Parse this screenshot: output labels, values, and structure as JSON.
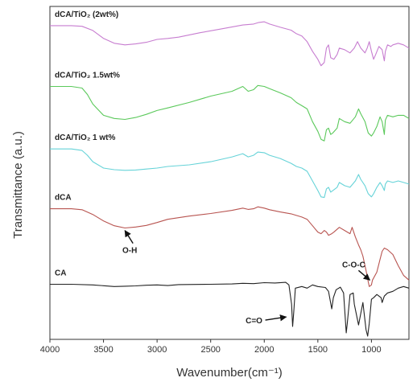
{
  "chart_data": {
    "type": "line",
    "xlabel": "Wavenumber(cm⁻¹)",
    "ylabel": "Transmittance (a.u.)",
    "x_reversed": true,
    "xlim": [
      4000,
      650
    ],
    "xticks": [
      4000,
      3500,
      3000,
      2500,
      2000,
      1500,
      1000
    ],
    "ylim": [
      0,
      100
    ],
    "legend": "labels placed above each curve on the left",
    "grid": false,
    "series": [
      {
        "name": "dCA/TiO₂ (2wt%)",
        "color": "#c77dd0",
        "points": [
          [
            4000,
            96
          ],
          [
            3800,
            96
          ],
          [
            3700,
            95.8
          ],
          [
            3600,
            94.5
          ],
          [
            3500,
            92
          ],
          [
            3400,
            90.5
          ],
          [
            3300,
            90
          ],
          [
            3200,
            90.3
          ],
          [
            3100,
            90.8
          ],
          [
            3000,
            91.7
          ],
          [
            2900,
            92
          ],
          [
            2800,
            92.4
          ],
          [
            2600,
            93.8
          ],
          [
            2400,
            95
          ],
          [
            2200,
            96.2
          ],
          [
            2100,
            96.5
          ],
          [
            2050,
            97
          ],
          [
            2000,
            97.2
          ],
          [
            1950,
            96.5
          ],
          [
            1850,
            95.5
          ],
          [
            1750,
            94.6
          ],
          [
            1700,
            93.5
          ],
          [
            1650,
            92.8
          ],
          [
            1600,
            91
          ],
          [
            1550,
            88
          ],
          [
            1500,
            85.5
          ],
          [
            1470,
            83.5
          ],
          [
            1440,
            84.5
          ],
          [
            1420,
            89
          ],
          [
            1400,
            90
          ],
          [
            1380,
            86
          ],
          [
            1350,
            85.5
          ],
          [
            1320,
            87
          ],
          [
            1300,
            89
          ],
          [
            1250,
            88.5
          ],
          [
            1200,
            87.5
          ],
          [
            1160,
            89
          ],
          [
            1130,
            91
          ],
          [
            1100,
            89
          ],
          [
            1060,
            87.5
          ],
          [
            1040,
            89
          ],
          [
            1020,
            91
          ],
          [
            1000,
            88
          ],
          [
            980,
            85.5
          ],
          [
            960,
            87
          ],
          [
            930,
            89.5
          ],
          [
            900,
            88.5
          ],
          [
            880,
            85
          ],
          [
            870,
            88
          ],
          [
            850,
            90
          ],
          [
            820,
            89.5
          ],
          [
            800,
            90
          ],
          [
            750,
            90.5
          ],
          [
            700,
            90
          ],
          [
            650,
            89
          ]
        ]
      },
      {
        "name": "dCA/TiO₂ 1.5wt%",
        "color": "#5bc95b",
        "points": [
          [
            4000,
            77
          ],
          [
            3800,
            77
          ],
          [
            3700,
            76.5
          ],
          [
            3650,
            74.5
          ],
          [
            3600,
            71.5
          ],
          [
            3500,
            68
          ],
          [
            3400,
            67
          ],
          [
            3300,
            66.7
          ],
          [
            3200,
            67.3
          ],
          [
            3100,
            68.3
          ],
          [
            3000,
            69.5
          ],
          [
            2900,
            70.3
          ],
          [
            2700,
            72
          ],
          [
            2500,
            74
          ],
          [
            2300,
            75.5
          ],
          [
            2200,
            77
          ],
          [
            2150,
            75.5
          ],
          [
            2100,
            76
          ],
          [
            2060,
            77.3
          ],
          [
            2000,
            77
          ],
          [
            1950,
            76.3
          ],
          [
            1850,
            75
          ],
          [
            1750,
            73.5
          ],
          [
            1700,
            72
          ],
          [
            1650,
            71
          ],
          [
            1600,
            70
          ],
          [
            1550,
            66
          ],
          [
            1500,
            63
          ],
          [
            1470,
            60.5
          ],
          [
            1440,
            60
          ],
          [
            1420,
            63.5
          ],
          [
            1400,
            64
          ],
          [
            1380,
            62
          ],
          [
            1360,
            62.5
          ],
          [
            1320,
            64
          ],
          [
            1300,
            67
          ],
          [
            1250,
            66
          ],
          [
            1200,
            65.5
          ],
          [
            1150,
            67.5
          ],
          [
            1120,
            70
          ],
          [
            1100,
            68.5
          ],
          [
            1060,
            66
          ],
          [
            1030,
            62.5
          ],
          [
            1000,
            61.5
          ],
          [
            980,
            62.5
          ],
          [
            950,
            64.5
          ],
          [
            920,
            67.5
          ],
          [
            900,
            66
          ],
          [
            880,
            62
          ],
          [
            870,
            66.5
          ],
          [
            850,
            68
          ],
          [
            800,
            67.5
          ],
          [
            750,
            68
          ],
          [
            700,
            68
          ],
          [
            650,
            67
          ]
        ]
      },
      {
        "name": "dCA/TiO₂ 1 wt%",
        "color": "#66d3d8",
        "points": [
          [
            4000,
            57.5
          ],
          [
            3800,
            57.5
          ],
          [
            3700,
            57
          ],
          [
            3650,
            55.5
          ],
          [
            3600,
            53.5
          ],
          [
            3500,
            51.5
          ],
          [
            3400,
            51
          ],
          [
            3300,
            50.8
          ],
          [
            3200,
            50.9
          ],
          [
            3100,
            51.2
          ],
          [
            3000,
            51.5
          ],
          [
            2900,
            52
          ],
          [
            2700,
            52.5
          ],
          [
            2500,
            53.5
          ],
          [
            2300,
            55
          ],
          [
            2200,
            56
          ],
          [
            2150,
            55
          ],
          [
            2100,
            55.5
          ],
          [
            2060,
            56.5
          ],
          [
            2000,
            56.3
          ],
          [
            1950,
            55.5
          ],
          [
            1850,
            54.5
          ],
          [
            1750,
            53
          ],
          [
            1700,
            52
          ],
          [
            1650,
            51.5
          ],
          [
            1600,
            50.5
          ],
          [
            1550,
            47.5
          ],
          [
            1500,
            44.5
          ],
          [
            1470,
            42.5
          ],
          [
            1440,
            42.3
          ],
          [
            1420,
            45
          ],
          [
            1400,
            45.5
          ],
          [
            1380,
            44
          ],
          [
            1360,
            44.5
          ],
          [
            1320,
            45.5
          ],
          [
            1300,
            47
          ],
          [
            1250,
            46
          ],
          [
            1200,
            45.5
          ],
          [
            1150,
            47.5
          ],
          [
            1120,
            49.5
          ],
          [
            1100,
            48
          ],
          [
            1060,
            46
          ],
          [
            1030,
            43.5
          ],
          [
            1000,
            42.5
          ],
          [
            980,
            43.5
          ],
          [
            950,
            45.5
          ],
          [
            920,
            47
          ],
          [
            900,
            46
          ],
          [
            880,
            44.5
          ],
          [
            870,
            46.5
          ],
          [
            850,
            47.5
          ],
          [
            800,
            47
          ],
          [
            750,
            47.5
          ],
          [
            700,
            47
          ],
          [
            650,
            46.5
          ]
        ]
      },
      {
        "name": "dCA",
        "color": "#b85450",
        "points": [
          [
            4000,
            38.8
          ],
          [
            3800,
            38.8
          ],
          [
            3700,
            38.5
          ],
          [
            3600,
            37
          ],
          [
            3500,
            35
          ],
          [
            3400,
            33.5
          ],
          [
            3300,
            32.8
          ],
          [
            3200,
            33.1
          ],
          [
            3100,
            33.6
          ],
          [
            3000,
            34.5
          ],
          [
            2900,
            35.5
          ],
          [
            2700,
            36.5
          ],
          [
            2500,
            37.3
          ],
          [
            2300,
            38.3
          ],
          [
            2200,
            39
          ],
          [
            2150,
            38.6
          ],
          [
            2100,
            38.8
          ],
          [
            2060,
            39.4
          ],
          [
            2000,
            39
          ],
          [
            1950,
            38.5
          ],
          [
            1850,
            37.8
          ],
          [
            1750,
            37.2
          ],
          [
            1700,
            36.7
          ],
          [
            1650,
            36.2
          ],
          [
            1600,
            35.5
          ],
          [
            1550,
            33.5
          ],
          [
            1500,
            31.5
          ],
          [
            1470,
            31
          ],
          [
            1440,
            32
          ],
          [
            1420,
            31.5
          ],
          [
            1400,
            30.5
          ],
          [
            1370,
            31
          ],
          [
            1350,
            31.5
          ],
          [
            1300,
            33
          ],
          [
            1250,
            32
          ],
          [
            1200,
            31
          ],
          [
            1180,
            33
          ],
          [
            1150,
            30
          ],
          [
            1120,
            27.5
          ],
          [
            1100,
            26
          ],
          [
            1080,
            24
          ],
          [
            1050,
            19.5
          ],
          [
            1030,
            16
          ],
          [
            1020,
            14.5
          ],
          [
            1000,
            15
          ],
          [
            990,
            16.5
          ],
          [
            950,
            19
          ],
          [
            920,
            23
          ],
          [
            900,
            25.5
          ],
          [
            880,
            26.5
          ],
          [
            850,
            26
          ],
          [
            800,
            24.5
          ],
          [
            750,
            21
          ],
          [
            700,
            18
          ],
          [
            650,
            16.5
          ]
        ]
      },
      {
        "name": "CA",
        "color": "#222222",
        "points": [
          [
            4000,
            15.2
          ],
          [
            3800,
            15.2
          ],
          [
            3600,
            15
          ],
          [
            3400,
            14.5
          ],
          [
            3300,
            14.6
          ],
          [
            3200,
            14.7
          ],
          [
            3100,
            14.9
          ],
          [
            3000,
            15
          ],
          [
            2900,
            14.8
          ],
          [
            2800,
            15.1
          ],
          [
            2500,
            15.2
          ],
          [
            2300,
            15.3
          ],
          [
            2200,
            15.5
          ],
          [
            2100,
            15.4
          ],
          [
            2000,
            15.7
          ],
          [
            1900,
            15.6
          ],
          [
            1800,
            15.8
          ],
          [
            1770,
            15
          ],
          [
            1745,
            9
          ],
          [
            1735,
            2
          ],
          [
            1725,
            6.5
          ],
          [
            1710,
            14
          ],
          [
            1650,
            14.5
          ],
          [
            1600,
            14
          ],
          [
            1550,
            15
          ],
          [
            1500,
            14.5
          ],
          [
            1430,
            14.2
          ],
          [
            1400,
            13
          ],
          [
            1370,
            7.5
          ],
          [
            1355,
            11
          ],
          [
            1330,
            13.5
          ],
          [
            1290,
            14.3
          ],
          [
            1260,
            12.5
          ],
          [
            1235,
            0
          ],
          [
            1225,
            3
          ],
          [
            1200,
            12
          ],
          [
            1170,
            12.5
          ],
          [
            1160,
            9
          ],
          [
            1120,
            2.5
          ],
          [
            1100,
            6
          ],
          [
            1080,
            9.5
          ],
          [
            1050,
            1
          ],
          [
            1035,
            -1
          ],
          [
            1020,
            3
          ],
          [
            1000,
            10.5
          ],
          [
            980,
            11
          ],
          [
            950,
            12
          ],
          [
            910,
            11
          ],
          [
            900,
            9.5
          ],
          [
            880,
            11.5
          ],
          [
            850,
            12.5
          ],
          [
            800,
            13
          ],
          [
            750,
            14
          ],
          [
            700,
            14.5
          ],
          [
            650,
            14
          ]
        ]
      }
    ],
    "annotations": [
      {
        "text": "O-H",
        "x": 3300,
        "y": 33
      },
      {
        "text": "C-O-C",
        "x": 1000,
        "y": 15
      },
      {
        "text": "C=O",
        "x": 1735,
        "y": 4
      }
    ]
  }
}
